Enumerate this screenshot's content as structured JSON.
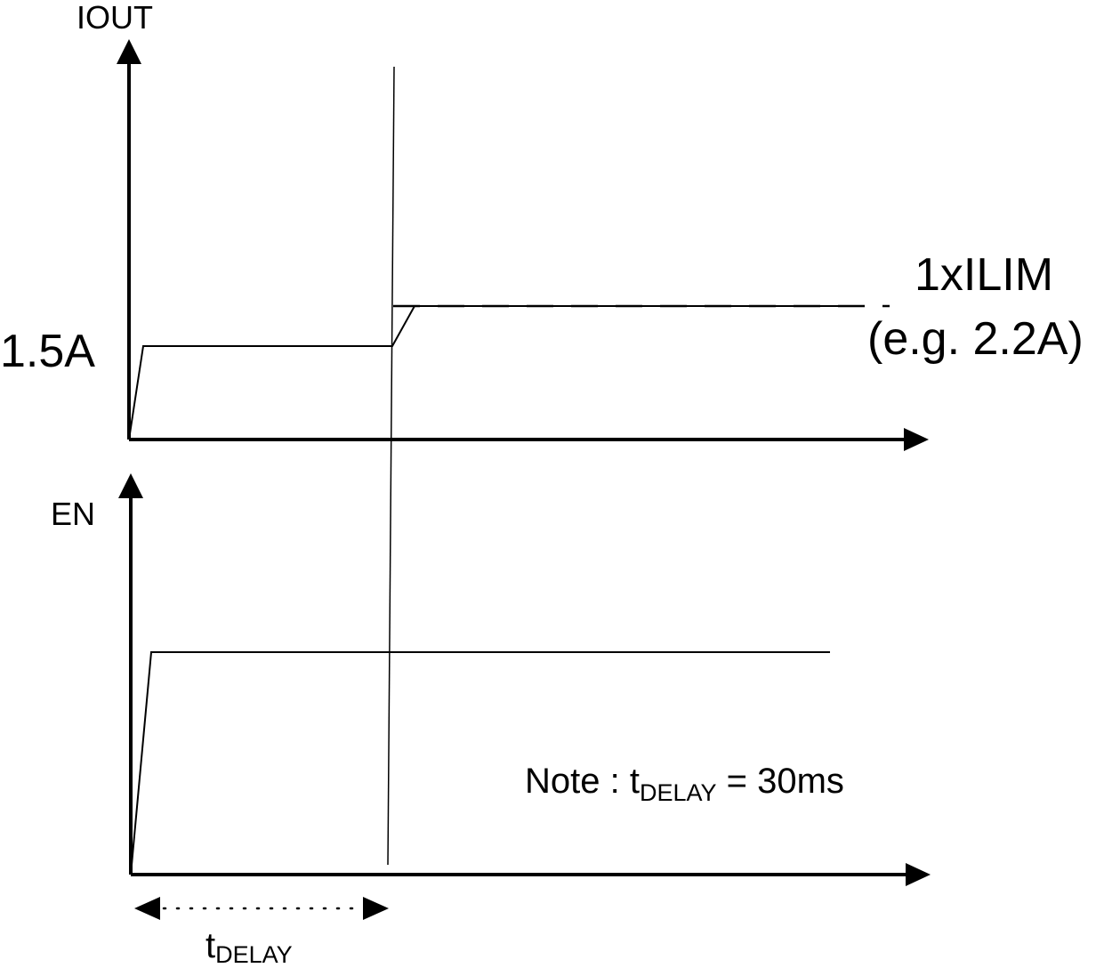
{
  "iout_panel": {
    "axis_label": "IOUT",
    "level_label": "1.5A",
    "limit_label": "1xILIM",
    "limit_example": "(e.g. 2.2A)"
  },
  "en_panel": {
    "axis_label": "EN"
  },
  "note": {
    "prefix": "Note : t",
    "subscript": "DELAY",
    "suffix": " = 30ms"
  },
  "delay_marker": {
    "symbol": "t",
    "subscript": "DELAY"
  }
}
